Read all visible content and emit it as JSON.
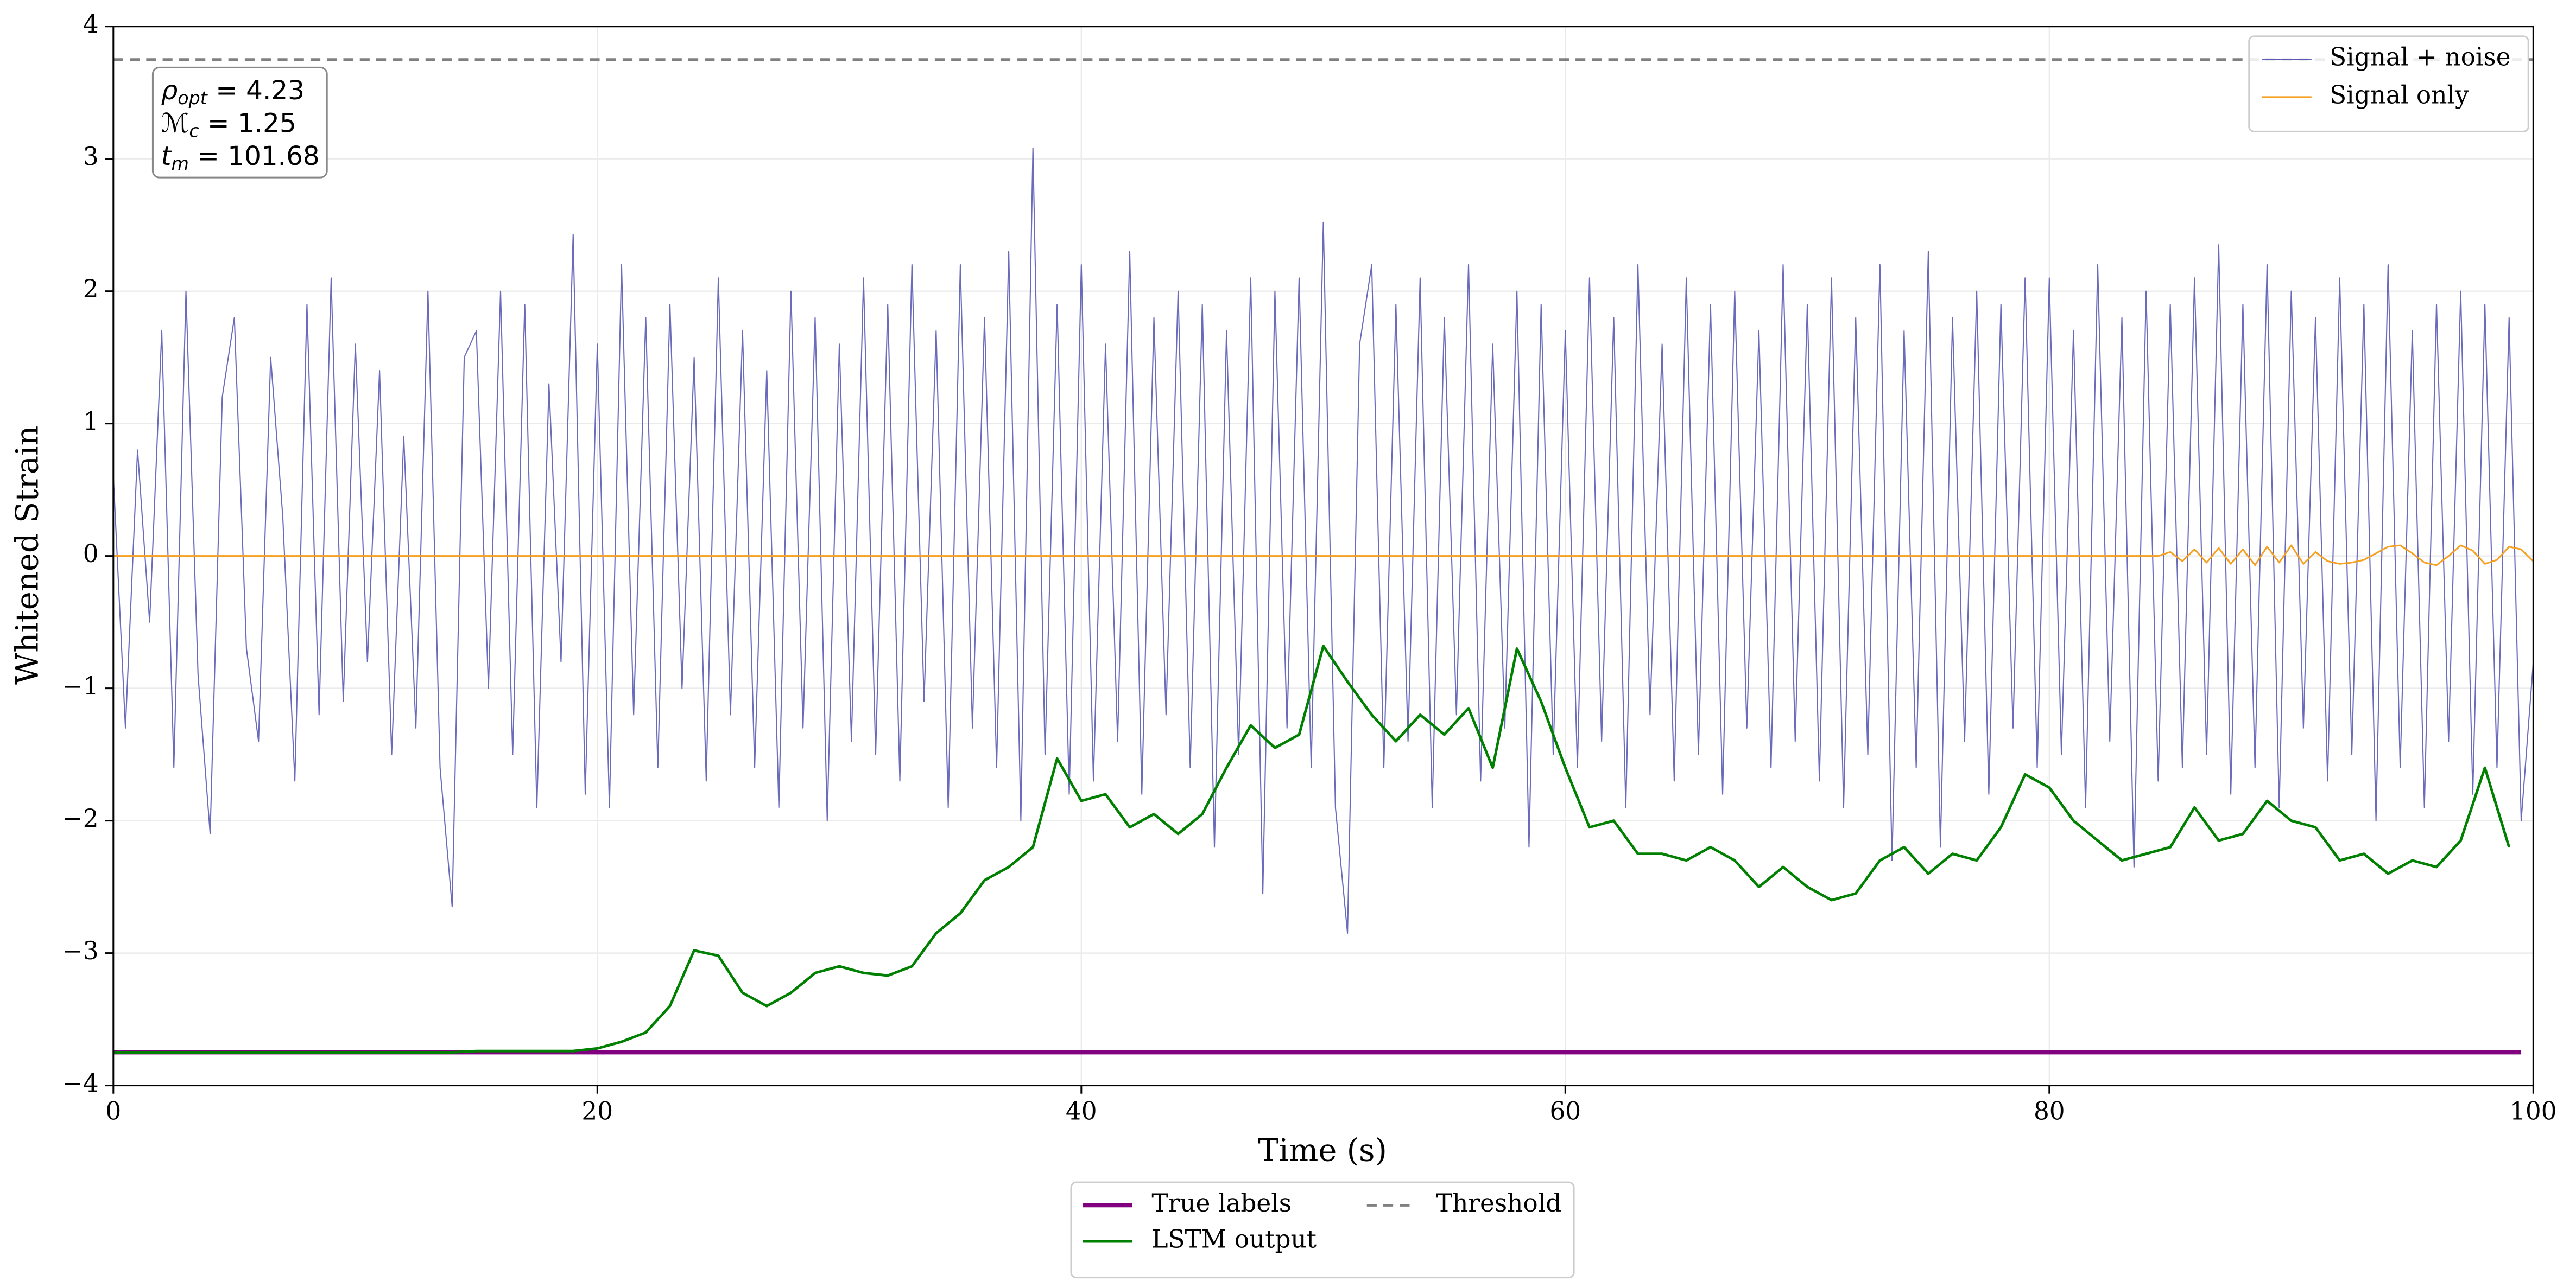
{
  "chart_data": {
    "type": "line",
    "xlabel": "Time (s)",
    "ylabel": "Whitened Strain",
    "xlim": [
      0,
      100
    ],
    "ylim": [
      -4,
      4
    ],
    "xticks": [
      0,
      20,
      40,
      60,
      80,
      100
    ],
    "yticks": [
      {
        "value": -4,
        "label": "−4"
      },
      {
        "value": -3,
        "label": "−3"
      },
      {
        "value": -2,
        "label": "−2"
      },
      {
        "value": -1,
        "label": "−1"
      },
      0,
      1,
      2,
      3,
      4
    ],
    "grid": true,
    "annotation": [
      {
        "symbol": "ρ",
        "subscript": "opt",
        "text": " = 4.23"
      },
      {
        "symbol": "ℳ",
        "subscript": "c",
        "text": " = 1.25"
      },
      {
        "symbol": "t",
        "subscript": "m",
        "text": " = 101.68"
      }
    ],
    "x": [
      0,
      0.5,
      1,
      1.5,
      2,
      2.5,
      3,
      3.5,
      4,
      4.5,
      5,
      5.5,
      6,
      6.5,
      7,
      7.5,
      8,
      8.5,
      9,
      9.5,
      10,
      10.5,
      11,
      11.5,
      12,
      12.5,
      13,
      13.5,
      14,
      14.5,
      15,
      15.5,
      16,
      16.5,
      17,
      17.5,
      18,
      18.5,
      19,
      19.5,
      20,
      20.5,
      21,
      21.5,
      22,
      22.5,
      23,
      23.5,
      24,
      24.5,
      25,
      25.5,
      26,
      26.5,
      27,
      27.5,
      28,
      28.5,
      29,
      29.5,
      30,
      30.5,
      31,
      31.5,
      32,
      32.5,
      33,
      33.5,
      34,
      34.5,
      35,
      35.5,
      36,
      36.5,
      37,
      37.5,
      38,
      38.5,
      39,
      39.5,
      40,
      40.5,
      41,
      41.5,
      42,
      42.5,
      43,
      43.5,
      44,
      44.5,
      45,
      45.5,
      46,
      46.5,
      47,
      47.5,
      48,
      48.5,
      49,
      49.5,
      50,
      50.5,
      51,
      51.5,
      52,
      52.5,
      53,
      53.5,
      54,
      54.5,
      55,
      55.5,
      56,
      56.5,
      57,
      57.5,
      58,
      58.5,
      59,
      59.5,
      60,
      60.5,
      61,
      61.5,
      62,
      62.5,
      63,
      63.5,
      64,
      64.5,
      65,
      65.5,
      66,
      66.5,
      67,
      67.5,
      68,
      68.5,
      69,
      69.5,
      70,
      70.5,
      71,
      71.5,
      72,
      72.5,
      73,
      73.5,
      74,
      74.5,
      75,
      75.5,
      76,
      76.5,
      77,
      77.5,
      78,
      78.5,
      79,
      79.5,
      80,
      80.5,
      81,
      81.5,
      82,
      82.5,
      83,
      83.5,
      84,
      84.5,
      85,
      85.5,
      86,
      86.5,
      87,
      87.5,
      88,
      88.5,
      89,
      89.5,
      90,
      90.5,
      91,
      91.5,
      92,
      92.5,
      93,
      93.5,
      94,
      94.5,
      95,
      95.5,
      96,
      96.5,
      97,
      97.5,
      98,
      98.5,
      99,
      99.5,
      100
    ],
    "series": [
      {
        "name": "Signal + noise",
        "color": "#5b5bb5",
        "legend": "upper right",
        "values": [
          0.6,
          -1.3,
          0.8,
          -0.5,
          1.7,
          -1.6,
          2.0,
          -0.9,
          -2.1,
          1.2,
          1.8,
          -0.7,
          -1.4,
          1.5,
          0.3,
          -1.7,
          1.9,
          -1.2,
          2.1,
          -1.1,
          1.6,
          -0.8,
          1.4,
          -1.5,
          0.9,
          -1.3,
          2.0,
          -1.6,
          -2.65,
          1.5,
          1.7,
          -1.0,
          2.0,
          -1.5,
          1.9,
          -1.9,
          1.3,
          -0.8,
          2.43,
          -1.8,
          1.6,
          -1.9,
          2.2,
          -1.2,
          1.8,
          -1.6,
          1.9,
          -1.0,
          1.5,
          -1.7,
          2.1,
          -1.2,
          1.7,
          -1.6,
          1.4,
          -1.9,
          2.0,
          -1.3,
          1.8,
          -2.0,
          1.6,
          -1.4,
          2.1,
          -1.5,
          1.9,
          -1.7,
          2.2,
          -1.1,
          1.7,
          -1.9,
          2.2,
          -1.3,
          1.8,
          -1.6,
          2.3,
          -2.0,
          3.08,
          -1.5,
          1.9,
          -1.8,
          2.2,
          -1.7,
          1.6,
          -1.4,
          2.3,
          -1.8,
          1.8,
          -1.2,
          2.0,
          -1.6,
          1.9,
          -2.2,
          1.7,
          -1.5,
          2.1,
          -2.55,
          2.0,
          -1.3,
          2.1,
          -1.6,
          2.52,
          -1.9,
          -2.85,
          1.6,
          2.2,
          -1.6,
          1.9,
          -1.4,
          2.1,
          -1.9,
          1.8,
          -1.2,
          2.2,
          -1.7,
          1.6,
          -1.3,
          2.0,
          -2.2,
          1.9,
          -1.5,
          1.7,
          -1.6,
          2.1,
          -1.4,
          1.8,
          -1.9,
          2.2,
          -1.2,
          1.6,
          -1.7,
          2.1,
          -1.5,
          1.9,
          -1.8,
          2.0,
          -1.3,
          1.7,
          -1.6,
          2.2,
          -1.4,
          1.9,
          -1.7,
          2.1,
          -1.9,
          1.8,
          -1.5,
          2.2,
          -2.3,
          1.7,
          -1.6,
          2.3,
          -2.2,
          1.8,
          -1.4,
          2.0,
          -1.8,
          1.9,
          -1.3,
          2.1,
          -1.6,
          2.1,
          -1.5,
          1.7,
          -1.9,
          2.2,
          -1.4,
          1.8,
          -2.35,
          2.0,
          -1.7,
          1.9,
          -1.6,
          2.1,
          -1.5,
          2.35,
          -1.8,
          1.9,
          -1.6,
          2.2,
          -1.9,
          2.0,
          -1.3,
          1.8,
          -1.7,
          2.1,
          -1.5,
          1.9,
          -2.0,
          2.2,
          -1.6,
          1.7,
          -1.9,
          1.9,
          -1.4,
          2.0,
          -1.8,
          1.9,
          -1.6,
          1.8,
          -2.0,
          -0.8
        ]
      },
      {
        "name": "Signal only",
        "color": "#f5a020",
        "legend": "upper right",
        "values": [
          0,
          0,
          0,
          0,
          0,
          0,
          0,
          0,
          0,
          0,
          0,
          0,
          0,
          0,
          0,
          0,
          0,
          0,
          0,
          0,
          0,
          0,
          0,
          0,
          0,
          0,
          0,
          0,
          0,
          0,
          0,
          0,
          0,
          0,
          0,
          0,
          0,
          0,
          0,
          0,
          0,
          0,
          0,
          0,
          0,
          0,
          0,
          0,
          0,
          0,
          0,
          0,
          0,
          0,
          0,
          0,
          0,
          0,
          0,
          0,
          0,
          0,
          0,
          0,
          0,
          0,
          0,
          0,
          0,
          0,
          0,
          0,
          0,
          0,
          0,
          0,
          0,
          0,
          0,
          0,
          0,
          0,
          0,
          0,
          0,
          0,
          0,
          0,
          0,
          0,
          0,
          0,
          0,
          0,
          0,
          0,
          0,
          0,
          0,
          0,
          0,
          0,
          0,
          0,
          0,
          0,
          0,
          0,
          0,
          0,
          0,
          0,
          0,
          0,
          0,
          0,
          0,
          0,
          0,
          0,
          0,
          0,
          0,
          0,
          0,
          0,
          0,
          0,
          0,
          0,
          0,
          0,
          0,
          0,
          0,
          0,
          0,
          0,
          0,
          0,
          0,
          0,
          0,
          0,
          0,
          0,
          0,
          0,
          0,
          0,
          0,
          0,
          0,
          0,
          0,
          0,
          0,
          0,
          0,
          0,
          0,
          0,
          0,
          0,
          0,
          0,
          0,
          0,
          0,
          0,
          0.03,
          -0.04,
          0.05,
          -0.05,
          0.06,
          -0.06,
          0.05,
          -0.07,
          0.07,
          -0.05,
          0.08,
          -0.06,
          0.03,
          -0.04,
          -0.06,
          -0.05,
          -0.03,
          0.02,
          0.07,
          0.08,
          0.02,
          -0.05,
          -0.07,
          0.0,
          0.08,
          0.04,
          -0.06,
          -0.03,
          0.07,
          0.05,
          -0.04
        ]
      },
      {
        "name": "True labels",
        "color": "#800080",
        "legend": "lower center",
        "x": [
          0,
          99.5
        ],
        "values": [
          -3.75,
          -3.75
        ]
      },
      {
        "name": "LSTM output",
        "color": "#008000",
        "legend": "lower center",
        "x": [
          0,
          1,
          2,
          3,
          4,
          5,
          6,
          7,
          8,
          9,
          10,
          11,
          12,
          13,
          14,
          15,
          16,
          17,
          18,
          19,
          20,
          21,
          22,
          23,
          24,
          25,
          26,
          27,
          28,
          29,
          30,
          31,
          32,
          33,
          34,
          35,
          36,
          37,
          38,
          39,
          40,
          41,
          42,
          43,
          44,
          45,
          46,
          47,
          48,
          49,
          50,
          51,
          52,
          53,
          54,
          55,
          56,
          57,
          58,
          59,
          60,
          61,
          62,
          63,
          64,
          65,
          66,
          67,
          68,
          69,
          70,
          71,
          72,
          73,
          74,
          75,
          76,
          77,
          78,
          79,
          80,
          81,
          82,
          83,
          84,
          85,
          86,
          87,
          88,
          89,
          90,
          91,
          92,
          93,
          94,
          95,
          96,
          97,
          98,
          99
        ],
        "values": [
          -3.75,
          -3.75,
          -3.75,
          -3.75,
          -3.75,
          -3.75,
          -3.75,
          -3.75,
          -3.75,
          -3.75,
          -3.75,
          -3.75,
          -3.75,
          -3.75,
          -3.75,
          -3.74,
          -3.74,
          -3.74,
          -3.74,
          -3.74,
          -3.72,
          -3.67,
          -3.6,
          -3.4,
          -2.98,
          -3.02,
          -3.3,
          -3.4,
          -3.3,
          -3.15,
          -3.1,
          -3.15,
          -3.17,
          -3.1,
          -2.85,
          -2.7,
          -2.45,
          -2.35,
          -2.2,
          -1.53,
          -1.85,
          -1.8,
          -2.05,
          -1.95,
          -2.1,
          -1.95,
          -1.6,
          -1.28,
          -1.45,
          -1.35,
          -0.68,
          -0.95,
          -1.2,
          -1.4,
          -1.2,
          -1.35,
          -1.15,
          -1.6,
          -0.7,
          -1.1,
          -1.6,
          -2.05,
          -2.0,
          -2.25,
          -2.25,
          -2.3,
          -2.2,
          -2.3,
          -2.5,
          -2.35,
          -2.5,
          -2.6,
          -2.55,
          -2.3,
          -2.2,
          -2.4,
          -2.25,
          -2.3,
          -2.05,
          -1.65,
          -1.75,
          -2.0,
          -2.15,
          -2.3,
          -2.25,
          -2.2,
          -1.9,
          -2.15,
          -2.1,
          -1.85,
          -2.0,
          -2.05,
          -2.3,
          -2.25,
          -2.4,
          -2.3,
          -2.35,
          -2.15,
          -1.6,
          -2.2
        ]
      },
      {
        "name": "Threshold",
        "color": "#808080",
        "legend": "lower center",
        "linestyle": "dashed",
        "x": [
          0,
          100
        ],
        "values": [
          3.75,
          3.75
        ]
      }
    ]
  }
}
